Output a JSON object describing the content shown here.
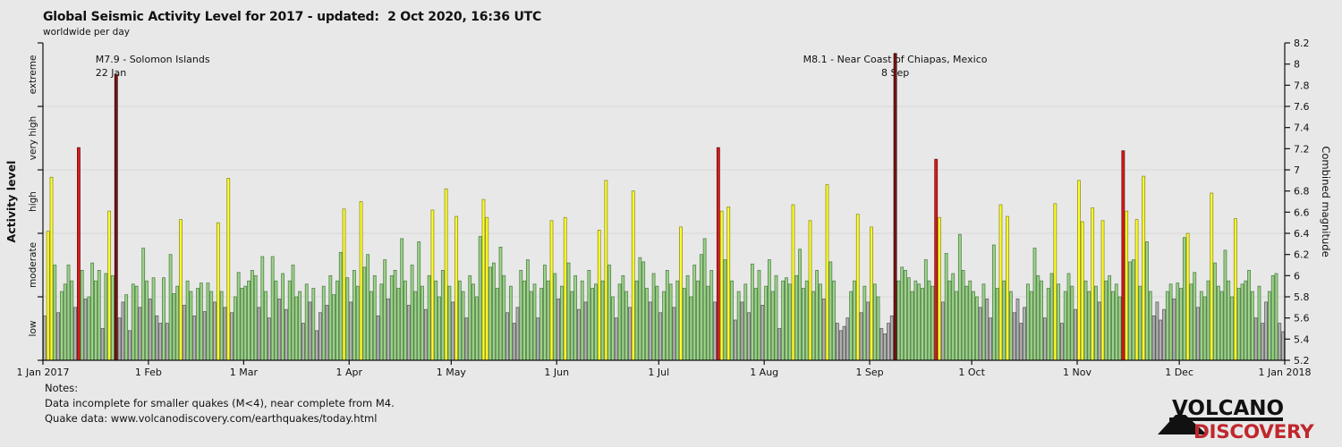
{
  "header": {
    "title": "Global Seismic Activity Level for 2017 - updated:  2 Oct 2020, 16:36 UTC",
    "subtitle": "worldwide per day"
  },
  "notes": {
    "heading": "Notes:",
    "lines": [
      "Data incomplete for smaller quakes (M<4), near complete from M4.",
      "Quake data: www.volcanodiscovery.com/earthquakes/today.html"
    ]
  },
  "logo": {
    "line1": "VOLCANO",
    "line2": "DISCOVERY",
    "accent_color": "#c0272d"
  },
  "chart_data": {
    "type": "bar",
    "title": "Global Seismic Activity Level for 2017",
    "x_unit": "day of year 2017",
    "y_axis_label": "Combined magnitude",
    "activity_axis_label": "Activity level",
    "y_range": [
      5.2,
      8.2
    ],
    "y_tick_step": 0.2,
    "grid_on": true,
    "grid_mags": [
      5.8,
      6.4,
      7.0,
      7.6
    ],
    "activity_levels": [
      {
        "label": "low",
        "min": 5.2,
        "max": 5.8,
        "fill": "#b3b3b3",
        "stroke": "#5f5f5f"
      },
      {
        "label": "moderate",
        "min": 5.8,
        "max": 6.4,
        "fill": "#9cd489",
        "stroke": "#55804b"
      },
      {
        "label": "high",
        "min": 6.4,
        "max": 7.0,
        "fill": "#ffff2b",
        "stroke": "#8f8f20"
      },
      {
        "label": "very high",
        "min": 7.0,
        "max": 7.6,
        "fill": "#dd1c1c",
        "stroke": "#6b0c0c"
      },
      {
        "label": "extreme",
        "min": 7.6,
        "max": 8.2,
        "fill": "#7c1416",
        "stroke": "#2e0607"
      }
    ],
    "months": [
      {
        "label": "1 Jan 2017",
        "day": 1
      },
      {
        "label": "1 Feb",
        "day": 32
      },
      {
        "label": "1 Mar",
        "day": 60
      },
      {
        "label": "1 Apr",
        "day": 91
      },
      {
        "label": "1 May",
        "day": 121
      },
      {
        "label": "1 Jun",
        "day": 152
      },
      {
        "label": "1 Jul",
        "day": 182
      },
      {
        "label": "1 Aug",
        "day": 213
      },
      {
        "label": "1 Sep",
        "day": 244
      },
      {
        "label": "1 Oct",
        "day": 274
      },
      {
        "label": "1 Nov",
        "day": 305
      },
      {
        "label": "1 Dec",
        "day": 335
      },
      {
        "label": "1 Jan 2018",
        "day": 366
      }
    ],
    "annotations": [
      {
        "lines": [
          "M7.9 - Solomon Islands",
          "22 Jan"
        ],
        "day": 22,
        "magnitude": 7.9,
        "align": "left"
      },
      {
        "lines": [
          "M8.1 - Near Coast of Chiapas, Mexico",
          "8 Sep"
        ],
        "day": 251,
        "magnitude": 8.1,
        "align": "center"
      }
    ],
    "highlights": [
      {
        "day": 11,
        "magnitude": 7.21,
        "level": "very high"
      },
      {
        "day": 22,
        "magnitude": 7.9,
        "level": "extreme"
      },
      {
        "day": 199,
        "magnitude": 7.21,
        "level": "very high"
      },
      {
        "day": 251,
        "magnitude": 8.1,
        "level": "extreme"
      },
      {
        "day": 263,
        "magnitude": 7.1,
        "level": "very high"
      },
      {
        "day": 318,
        "magnitude": 7.18,
        "level": "very high"
      }
    ],
    "daily_combined_magnitude": [
      5.62,
      6.42,
      6.93,
      6.1,
      5.65,
      5.85,
      5.92,
      6.1,
      5.95,
      5.7,
      7.21,
      6.05,
      5.78,
      5.8,
      6.12,
      5.95,
      6.05,
      5.5,
      6.02,
      6.61,
      6.0,
      7.9,
      5.6,
      5.75,
      5.82,
      5.48,
      5.92,
      5.9,
      5.7,
      6.26,
      5.95,
      5.78,
      5.98,
      5.62,
      5.55,
      5.98,
      5.55,
      6.2,
      5.83,
      5.9,
      6.53,
      5.72,
      5.95,
      5.85,
      5.62,
      5.88,
      5.93,
      5.66,
      5.93,
      5.85,
      5.75,
      6.5,
      5.85,
      5.7,
      6.92,
      5.65,
      5.8,
      6.03,
      5.88,
      5.9,
      5.95,
      6.05,
      6.0,
      5.7,
      6.18,
      5.85,
      5.6,
      6.18,
      5.95,
      5.78,
      6.02,
      5.68,
      5.95,
      6.1,
      5.8,
      5.85,
      5.55,
      5.92,
      5.75,
      5.88,
      5.48,
      5.65,
      5.9,
      5.72,
      6.0,
      5.82,
      5.95,
      6.22,
      6.63,
      5.98,
      5.75,
      6.05,
      5.9,
      6.7,
      6.08,
      6.2,
      5.85,
      6.0,
      5.62,
      5.92,
      6.15,
      5.78,
      6.0,
      6.05,
      5.88,
      6.35,
      5.95,
      5.72,
      6.1,
      5.85,
      6.32,
      5.9,
      5.68,
      6.0,
      6.62,
      5.95,
      5.8,
      6.05,
      6.82,
      5.9,
      5.75,
      6.56,
      5.95,
      5.85,
      5.6,
      6.0,
      5.92,
      5.8,
      6.37,
      6.72,
      6.55,
      6.08,
      6.12,
      5.88,
      6.27,
      6.0,
      5.65,
      5.9,
      5.55,
      5.7,
      6.05,
      5.95,
      6.15,
      5.85,
      5.92,
      5.6,
      5.88,
      6.1,
      5.95,
      6.52,
      6.02,
      5.78,
      5.9,
      6.55,
      6.12,
      5.85,
      6.0,
      5.68,
      5.95,
      5.75,
      6.05,
      5.88,
      5.92,
      6.43,
      5.95,
      6.9,
      6.1,
      5.8,
      5.6,
      5.92,
      6.0,
      5.85,
      5.7,
      6.8,
      5.95,
      6.17,
      6.13,
      5.88,
      5.75,
      6.02,
      5.9,
      5.65,
      5.85,
      6.05,
      5.92,
      5.7,
      5.95,
      6.46,
      5.88,
      6.0,
      5.8,
      6.1,
      5.95,
      6.2,
      6.35,
      5.9,
      6.05,
      5.75,
      7.21,
      6.61,
      6.15,
      6.65,
      5.95,
      5.58,
      5.85,
      5.75,
      5.92,
      5.65,
      6.11,
      5.88,
      6.05,
      5.72,
      5.9,
      6.15,
      5.85,
      6.0,
      5.5,
      5.95,
      5.98,
      5.92,
      6.67,
      6.0,
      6.25,
      5.88,
      5.95,
      6.52,
      5.85,
      6.05,
      5.92,
      5.78,
      6.86,
      6.13,
      5.95,
      5.55,
      5.48,
      5.52,
      5.6,
      5.85,
      5.95,
      6.58,
      5.65,
      5.9,
      5.75,
      6.46,
      5.92,
      5.8,
      5.5,
      5.45,
      5.55,
      5.62,
      8.1,
      5.95,
      6.08,
      6.05,
      5.98,
      5.85,
      5.95,
      5.92,
      5.88,
      6.15,
      5.95,
      5.9,
      7.1,
      6.55,
      5.75,
      6.21,
      5.95,
      6.02,
      5.85,
      6.39,
      6.05,
      5.9,
      5.95,
      5.85,
      5.8,
      5.7,
      5.92,
      5.78,
      5.6,
      6.29,
      5.88,
      6.67,
      5.95,
      6.56,
      5.85,
      5.65,
      5.78,
      5.55,
      5.7,
      5.92,
      5.85,
      6.26,
      6.0,
      5.95,
      5.6,
      5.88,
      6.02,
      6.68,
      5.92,
      5.55,
      5.85,
      6.02,
      5.9,
      5.68,
      6.9,
      6.51,
      5.95,
      5.85,
      6.64,
      5.9,
      5.75,
      6.52,
      5.95,
      6.0,
      5.85,
      5.92,
      5.8,
      7.18,
      6.61,
      6.13,
      6.15,
      6.53,
      5.9,
      6.94,
      6.32,
      5.85,
      5.62,
      5.75,
      5.58,
      5.68,
      5.85,
      5.92,
      5.78,
      5.93,
      5.88,
      6.36,
      6.4,
      5.92,
      6.03,
      5.7,
      5.85,
      5.8,
      5.95,
      6.78,
      6.12,
      5.9,
      5.85,
      6.24,
      5.95,
      5.8,
      6.54,
      5.88,
      5.92,
      5.95,
      6.05,
      5.85,
      5.6,
      5.9,
      5.55,
      5.75,
      5.85,
      6.0,
      6.02,
      5.55,
      5.47
    ]
  },
  "style": {
    "background": "#e8e8e8",
    "gridline_color": "#d8d8d8",
    "axis_color": "#111111",
    "text_color": "#111111"
  }
}
